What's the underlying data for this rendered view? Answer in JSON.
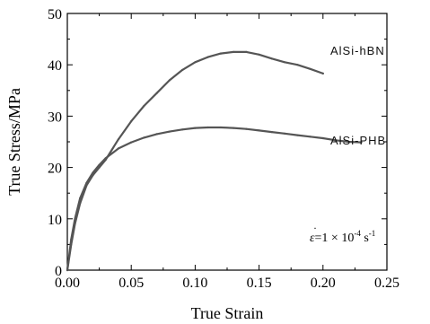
{
  "chart_data": {
    "type": "line",
    "title": "",
    "xlabel": "True Strain",
    "ylabel": "True Stress/MPa",
    "xlim": [
      0.0,
      0.25
    ],
    "ylim": [
      0,
      50
    ],
    "xticks": [
      "0.00",
      "0.05",
      "0.10",
      "0.15",
      "0.20",
      "0.25"
    ],
    "yticks": [
      "0",
      "10",
      "20",
      "30",
      "40",
      "50"
    ],
    "grid": false,
    "legend": "inline labels",
    "series": [
      {
        "name": "AlSi-hBN",
        "color": "#555555",
        "x": [
          0,
          0.003,
          0.006,
          0.01,
          0.015,
          0.02,
          0.025,
          0.03,
          0.04,
          0.05,
          0.06,
          0.07,
          0.08,
          0.09,
          0.1,
          0.11,
          0.12,
          0.13,
          0.14,
          0.15,
          0.16,
          0.17,
          0.18,
          0.19,
          0.2
        ],
        "y": [
          0,
          5,
          9,
          13,
          16.5,
          18.5,
          20,
          21.5,
          25.5,
          29,
          32,
          34.5,
          37,
          39,
          40.5,
          41.5,
          42.2,
          42.5,
          42.5,
          42,
          41.2,
          40.5,
          40,
          39.2,
          38.3
        ]
      },
      {
        "name": "AlSi-PHB",
        "color": "#555555",
        "x": [
          0,
          0.003,
          0.006,
          0.01,
          0.015,
          0.02,
          0.025,
          0.03,
          0.04,
          0.05,
          0.06,
          0.07,
          0.08,
          0.09,
          0.1,
          0.11,
          0.12,
          0.13,
          0.14,
          0.15,
          0.16,
          0.17,
          0.18,
          0.19,
          0.2,
          0.21,
          0.22,
          0.23
        ],
        "y": [
          0,
          6,
          10,
          14,
          17,
          19,
          20.5,
          21.8,
          23.7,
          24.9,
          25.8,
          26.5,
          27.0,
          27.4,
          27.7,
          27.8,
          27.8,
          27.7,
          27.5,
          27.2,
          26.9,
          26.6,
          26.3,
          26.0,
          25.7,
          25.3,
          25.0,
          24.9
        ]
      }
    ],
    "annotation": {
      "symbol": "ε",
      "body": "=1 × 10",
      "exponent": "-4",
      "unit": " s",
      "unit_exponent": "-1"
    }
  }
}
